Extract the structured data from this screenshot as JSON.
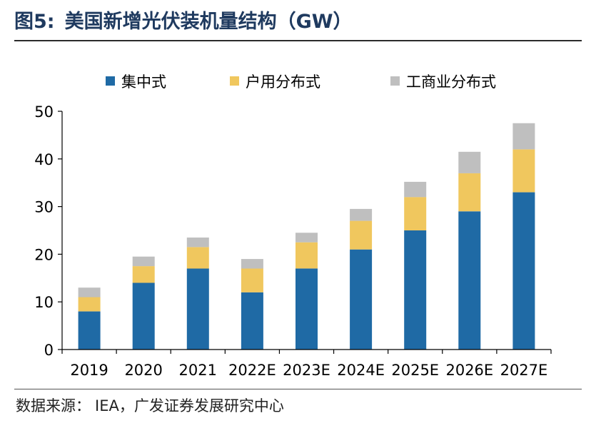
{
  "header": {
    "figure_label": "图5:",
    "title": "美国新增光伏装机量结构（GW）"
  },
  "footer": {
    "source_label": "数据来源：",
    "source_text": "IEA，广发证券发展研究中心"
  },
  "colors": {
    "title": "#1f3a5f",
    "centralized": "#1f6aa5",
    "residential": "#f0c75e",
    "commercial": "#bfbfbf",
    "axis": "#000000"
  },
  "chart_data": {
    "type": "bar",
    "stacked": true,
    "title": "美国新增光伏装机量结构（GW）",
    "xlabel": "",
    "ylabel": "",
    "ylim": [
      0,
      50
    ],
    "yticks": [
      "0",
      "10",
      "20",
      "30",
      "40",
      "50"
    ],
    "grid": false,
    "legend_position": "top",
    "categories": [
      "2019",
      "2020",
      "2021",
      "2022E",
      "2023E",
      "2024E",
      "2025E",
      "2026E",
      "2027E"
    ],
    "series": [
      {
        "name": "集中式",
        "color": "#1f6aa5",
        "values": [
          8,
          14,
          17,
          12,
          17,
          21,
          25,
          29,
          33
        ]
      },
      {
        "name": "户用分布式",
        "color": "#f0c75e",
        "values": [
          3,
          3.5,
          4.5,
          5,
          5.5,
          6,
          7,
          8,
          9
        ]
      },
      {
        "name": "工商业分布式",
        "color": "#bfbfbf",
        "values": [
          2,
          2,
          2,
          2,
          2,
          2.5,
          3.2,
          4.5,
          5.5
        ]
      }
    ]
  }
}
